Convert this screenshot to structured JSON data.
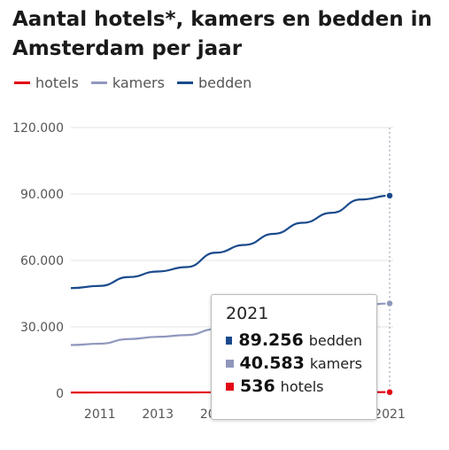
{
  "chart_data": {
    "type": "line",
    "title": "Aantal hotels*, kamers en bedden in Amsterdam per jaar",
    "x": [
      2010,
      2011,
      2012,
      2013,
      2014,
      2015,
      2016,
      2017,
      2018,
      2019,
      2020,
      2021
    ],
    "xticks": [
      2011,
      2013,
      2015,
      2017,
      2019,
      2021
    ],
    "xtick_labels": [
      "2011",
      "2013",
      "2015",
      "2017",
      "2019",
      "2021"
    ],
    "ylim": [
      0,
      120000
    ],
    "yticks": [
      0,
      30000,
      60000,
      90000,
      120000
    ],
    "ytick_labels": [
      "0",
      "30.000",
      "60.000",
      "90.000",
      "120.000"
    ],
    "grid": true,
    "legend": "top-left",
    "series": [
      {
        "name": "hotels",
        "color": "#e30613",
        "values": [
          360,
          370,
          390,
          400,
          410,
          430,
          460,
          480,
          500,
          520,
          530,
          536
        ]
      },
      {
        "name": "kamers",
        "color": "#9097bd",
        "values": [
          21800,
          22400,
          24500,
          25500,
          26300,
          29000,
          30500,
          33000,
          35500,
          37500,
          39800,
          40583
        ]
      },
      {
        "name": "bedden",
        "color": "#1a4a8c",
        "values": [
          47500,
          48500,
          52500,
          55000,
          57000,
          63500,
          67000,
          72000,
          77000,
          81500,
          87500,
          89256
        ]
      }
    ]
  },
  "tooltip": {
    "year": "2021",
    "rows": [
      {
        "value": "89.256",
        "label": "bedden",
        "color": "#1a4a8c"
      },
      {
        "value": "40.583",
        "label": "kamers",
        "color": "#9097bd"
      },
      {
        "value": "536",
        "label": "hotels",
        "color": "#e30613"
      }
    ]
  }
}
